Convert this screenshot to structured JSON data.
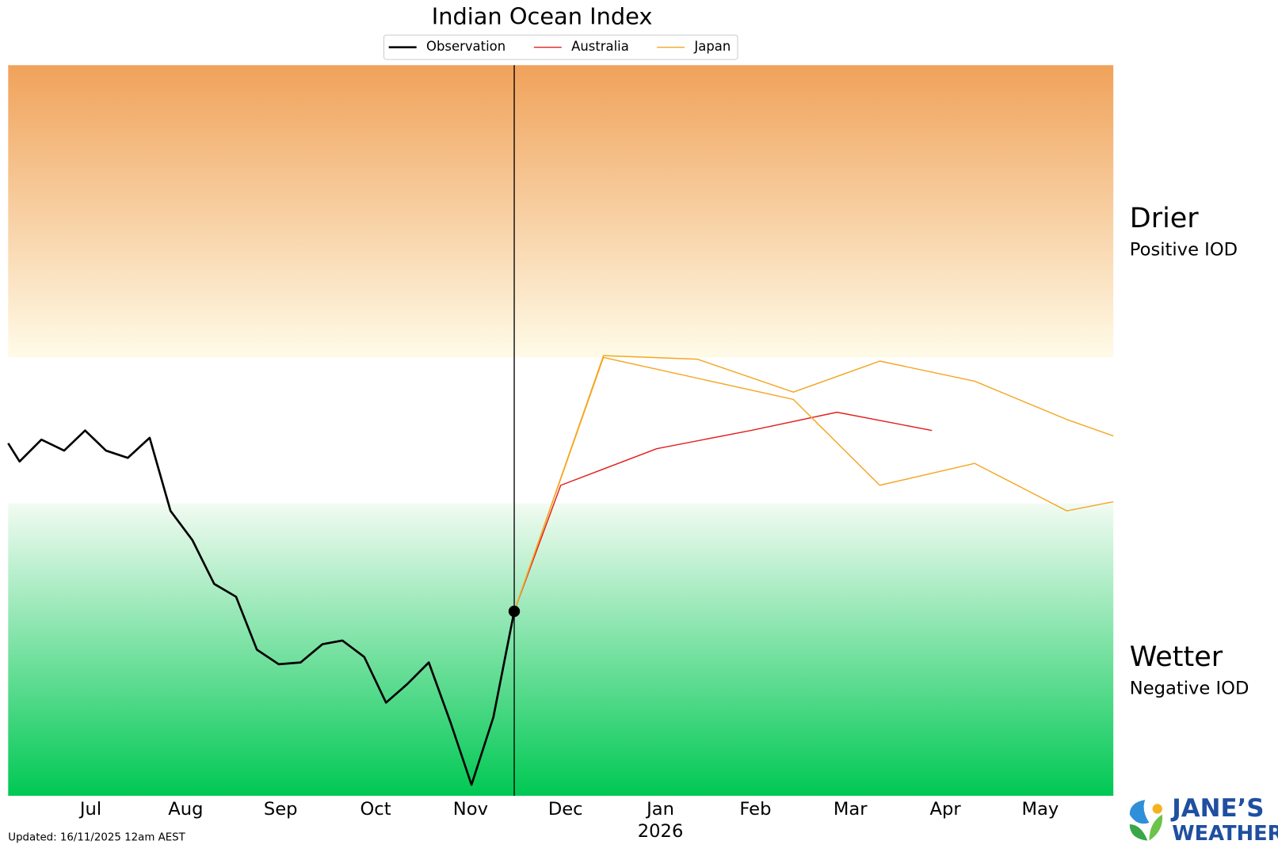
{
  "chart_data": {
    "type": "line",
    "title": "Indian Ocean Index",
    "xlim": [
      6.13,
      17.77
    ],
    "ylim": [
      -2,
      2
    ],
    "xticks": [
      {
        "value": 7,
        "label": "Jul"
      },
      {
        "value": 8,
        "label": "Aug"
      },
      {
        "value": 9,
        "label": "Sep"
      },
      {
        "value": 10,
        "label": "Oct"
      },
      {
        "value": 11,
        "label": "Nov"
      },
      {
        "value": 12,
        "label": "Dec"
      },
      {
        "value": 13,
        "label": "Jan"
      },
      {
        "value": 14,
        "label": "Feb"
      },
      {
        "value": 15,
        "label": "Mar"
      },
      {
        "value": 16,
        "label": "Apr"
      },
      {
        "value": 17,
        "label": "May"
      }
    ],
    "year_label": {
      "value": 13,
      "label": "2026"
    },
    "now_x": 11.46,
    "bands": [
      {
        "from": 0.4,
        "to": 2,
        "label": "Drier",
        "sublabel": "Positive IOD",
        "colors": [
          "#f0a25a",
          "#fffbe8"
        ]
      },
      {
        "from": -2,
        "to": -0.4,
        "label": "Wetter",
        "sublabel": "Negative IOD",
        "colors": [
          "#f2fbf2",
          "#00c853"
        ]
      }
    ],
    "series": [
      {
        "name": "Observation",
        "color": "#000000",
        "x": [
          6.13,
          6.25,
          6.48,
          6.72,
          6.94,
          7.16,
          7.39,
          7.62,
          7.84,
          8.07,
          8.3,
          8.53,
          8.75,
          8.98,
          9.21,
          9.44,
          9.65,
          9.88,
          10.11,
          10.33,
          10.56,
          10.79,
          11.01,
          11.24,
          11.46
        ],
        "values": [
          -0.07,
          -0.17,
          -0.05,
          -0.11,
          0.0,
          -0.11,
          -0.15,
          -0.04,
          -0.44,
          -0.6,
          -0.84,
          -0.91,
          -1.2,
          -1.28,
          -1.27,
          -1.17,
          -1.15,
          -1.24,
          -1.49,
          -1.39,
          -1.27,
          -1.6,
          -1.94,
          -1.57,
          -0.99
        ]
      },
      {
        "name": "Australia",
        "color": "#e0201c",
        "x": [
          11.46,
          11.95,
          12.96,
          13.95,
          14.86,
          15.86
        ],
        "values": [
          -0.99,
          -0.3,
          -0.1,
          0.0,
          0.1,
          0.0
        ]
      },
      {
        "name": "Japan",
        "color": "#f5a623",
        "members": [
          {
            "x": [
              11.46,
              12.4,
              13.39,
              14.4,
              15.31,
              16.31,
              17.28,
              17.77
            ],
            "values": [
              -0.99,
              0.41,
              0.39,
              0.21,
              0.38,
              0.27,
              0.06,
              -0.03
            ]
          },
          {
            "x": [
              11.46,
              12.4,
              14.4,
              15.31,
              16.31,
              17.28,
              17.77
            ],
            "values": [
              -0.99,
              0.4,
              0.17,
              -0.3,
              -0.18,
              -0.44,
              -0.39
            ]
          }
        ]
      }
    ]
  },
  "footer": {
    "updated": "Updated: 16/11/2025 12am AEST"
  },
  "branding": {
    "line1": "JANE’S",
    "line2": "WEATHER"
  }
}
